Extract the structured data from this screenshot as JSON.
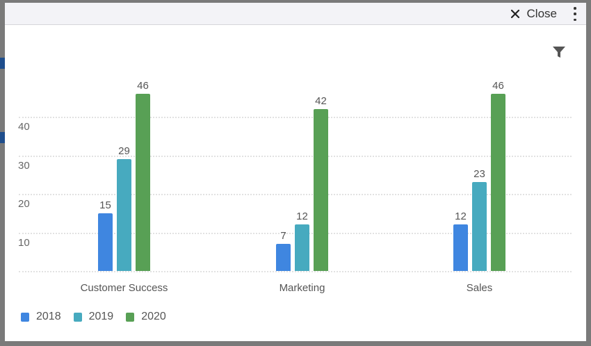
{
  "modal": {
    "close_label": "Close",
    "icons": {
      "close": "x-icon",
      "more": "vertical-ellipsis-icon",
      "filter": "funnel-icon"
    }
  },
  "colors": {
    "2018": "#3f86e0",
    "2019": "#47aabf",
    "2020": "#58a055",
    "grid": "#e2e2e2",
    "text": "#555555"
  },
  "chart_data": {
    "type": "bar",
    "title": "",
    "xlabel": "",
    "ylabel": "",
    "categories": [
      "Customer Success",
      "Marketing",
      "Sales"
    ],
    "series": [
      {
        "name": "2018",
        "values": [
          15,
          7,
          12
        ]
      },
      {
        "name": "2019",
        "values": [
          29,
          12,
          23
        ]
      },
      {
        "name": "2020",
        "values": [
          46,
          42,
          46
        ]
      }
    ],
    "yticks": [
      10,
      20,
      30,
      40
    ],
    "ylim": [
      0,
      50
    ],
    "grid": true,
    "data_labels": true,
    "legend_position": "bottom-left"
  }
}
